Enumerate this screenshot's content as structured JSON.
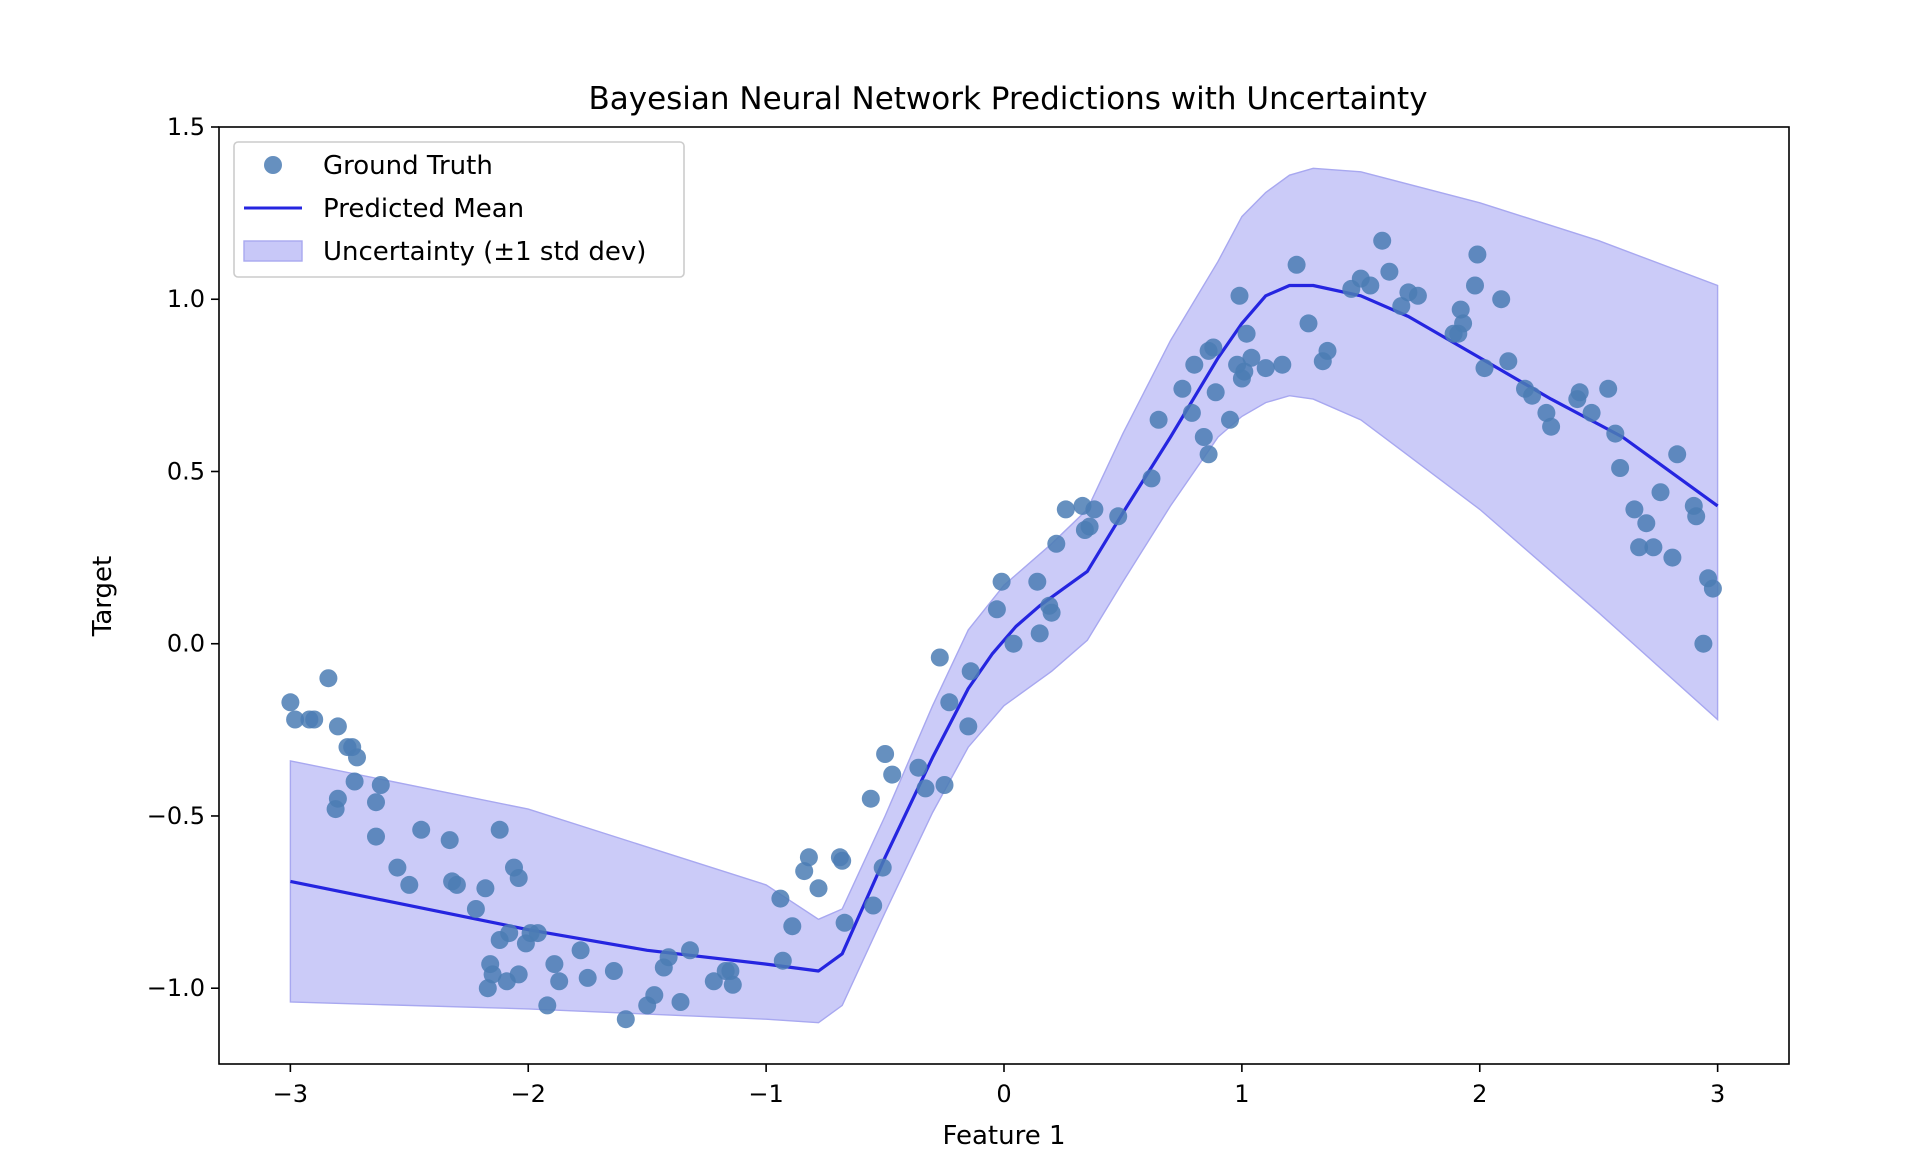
{
  "chart_data": {
    "type": "scatter",
    "title": "Bayesian Neural Network Predictions with Uncertainty",
    "xlabel": "Feature 1",
    "ylabel": "Target",
    "xlim": [
      -3.3,
      3.3
    ],
    "ylim": [
      -1.22,
      1.5
    ],
    "x_ticks": [
      -3,
      -2,
      -1,
      0,
      1,
      2,
      3
    ],
    "x_tick_labels": [
      "−3",
      "−2",
      "−1",
      "0",
      "1",
      "2",
      "3"
    ],
    "y_ticks": [
      -1.0,
      -0.5,
      0.0,
      0.5,
      1.0,
      1.5
    ],
    "y_tick_labels": [
      "−1.0",
      "−0.5",
      "0.0",
      "0.5",
      "1.0",
      "1.5"
    ],
    "grid": false,
    "legend_position": "top-left",
    "legend": [
      "Ground Truth",
      "Predicted Mean",
      "Uncertainty (±1 std dev)"
    ],
    "colors": {
      "ground_truth": "#4b7db4",
      "mean_line": "#2525e0",
      "band_fill": "#c8c8f8",
      "band_edge": "#a8a8f0"
    },
    "series": [
      {
        "name": "Ground Truth",
        "type": "scatter",
        "points": [
          [
            -3.0,
            -0.17
          ],
          [
            -2.98,
            -0.22
          ],
          [
            -2.92,
            -0.22
          ],
          [
            -2.9,
            -0.22
          ],
          [
            -2.84,
            -0.1
          ],
          [
            -2.8,
            -0.24
          ],
          [
            -2.76,
            -0.3
          ],
          [
            -2.74,
            -0.3
          ],
          [
            -2.72,
            -0.33
          ],
          [
            -2.73,
            -0.4
          ],
          [
            -2.8,
            -0.45
          ],
          [
            -2.81,
            -0.48
          ],
          [
            -2.62,
            -0.41
          ],
          [
            -2.64,
            -0.46
          ],
          [
            -2.64,
            -0.56
          ],
          [
            -2.55,
            -0.65
          ],
          [
            -2.5,
            -0.7
          ],
          [
            -2.45,
            -0.54
          ],
          [
            -2.33,
            -0.57
          ],
          [
            -2.32,
            -0.69
          ],
          [
            -2.3,
            -0.7
          ],
          [
            -2.22,
            -0.77
          ],
          [
            -2.18,
            -0.71
          ],
          [
            -2.12,
            -0.54
          ],
          [
            -2.16,
            -0.93
          ],
          [
            -2.17,
            -1.0
          ],
          [
            -2.15,
            -0.96
          ],
          [
            -2.12,
            -0.86
          ],
          [
            -2.09,
            -0.98
          ],
          [
            -2.08,
            -0.84
          ],
          [
            -2.06,
            -0.65
          ],
          [
            -2.04,
            -0.68
          ],
          [
            -2.04,
            -0.96
          ],
          [
            -2.01,
            -0.87
          ],
          [
            -1.99,
            -0.84
          ],
          [
            -1.96,
            -0.84
          ],
          [
            -1.92,
            -1.05
          ],
          [
            -1.89,
            -0.93
          ],
          [
            -1.87,
            -0.98
          ],
          [
            -1.78,
            -0.89
          ],
          [
            -1.75,
            -0.97
          ],
          [
            -1.64,
            -0.95
          ],
          [
            -1.59,
            -1.09
          ],
          [
            -1.5,
            -1.05
          ],
          [
            -1.47,
            -1.02
          ],
          [
            -1.43,
            -0.94
          ],
          [
            -1.41,
            -0.91
          ],
          [
            -1.36,
            -1.04
          ],
          [
            -1.32,
            -0.89
          ],
          [
            -1.22,
            -0.98
          ],
          [
            -1.17,
            -0.95
          ],
          [
            -1.15,
            -0.95
          ],
          [
            -1.14,
            -0.99
          ],
          [
            -0.93,
            -0.92
          ],
          [
            -0.94,
            -0.74
          ],
          [
            -0.89,
            -0.82
          ],
          [
            -0.84,
            -0.66
          ],
          [
            -0.82,
            -0.62
          ],
          [
            -0.78,
            -0.71
          ],
          [
            -0.69,
            -0.62
          ],
          [
            -0.68,
            -0.63
          ],
          [
            -0.67,
            -0.81
          ],
          [
            -0.56,
            -0.45
          ],
          [
            -0.55,
            -0.76
          ],
          [
            -0.51,
            -0.65
          ],
          [
            -0.5,
            -0.32
          ],
          [
            -0.47,
            -0.38
          ],
          [
            -0.36,
            -0.36
          ],
          [
            -0.33,
            -0.42
          ],
          [
            -0.27,
            -0.04
          ],
          [
            -0.25,
            -0.41
          ],
          [
            -0.23,
            -0.17
          ],
          [
            -0.15,
            -0.24
          ],
          [
            -0.14,
            -0.08
          ],
          [
            -0.03,
            0.1
          ],
          [
            -0.01,
            0.18
          ],
          [
            0.04,
            0.0
          ],
          [
            0.14,
            0.18
          ],
          [
            0.15,
            0.03
          ],
          [
            0.19,
            0.11
          ],
          [
            0.2,
            0.09
          ],
          [
            0.22,
            0.29
          ],
          [
            0.26,
            0.39
          ],
          [
            0.33,
            0.4
          ],
          [
            0.34,
            0.33
          ],
          [
            0.36,
            0.34
          ],
          [
            0.38,
            0.39
          ],
          [
            0.48,
            0.37
          ],
          [
            0.62,
            0.48
          ],
          [
            0.65,
            0.65
          ],
          [
            0.75,
            0.74
          ],
          [
            0.79,
            0.67
          ],
          [
            0.8,
            0.81
          ],
          [
            0.84,
            0.6
          ],
          [
            0.86,
            0.55
          ],
          [
            0.86,
            0.85
          ],
          [
            0.88,
            0.86
          ],
          [
            0.89,
            0.73
          ],
          [
            0.95,
            0.65
          ],
          [
            0.98,
            0.81
          ],
          [
            0.99,
            1.01
          ],
          [
            1.0,
            0.77
          ],
          [
            1.01,
            0.79
          ],
          [
            1.02,
            0.9
          ],
          [
            1.04,
            0.83
          ],
          [
            1.1,
            0.8
          ],
          [
            1.17,
            0.81
          ],
          [
            1.23,
            1.1
          ],
          [
            1.28,
            0.93
          ],
          [
            1.34,
            0.82
          ],
          [
            1.36,
            0.85
          ],
          [
            1.46,
            1.03
          ],
          [
            1.5,
            1.06
          ],
          [
            1.54,
            1.04
          ],
          [
            1.59,
            1.17
          ],
          [
            1.62,
            1.08
          ],
          [
            1.67,
            0.98
          ],
          [
            1.7,
            1.02
          ],
          [
            1.74,
            1.01
          ],
          [
            1.89,
            0.9
          ],
          [
            1.91,
            0.9
          ],
          [
            1.92,
            0.97
          ],
          [
            1.93,
            0.93
          ],
          [
            1.98,
            1.04
          ],
          [
            1.99,
            1.13
          ],
          [
            2.02,
            0.8
          ],
          [
            2.09,
            1.0
          ],
          [
            2.12,
            0.82
          ],
          [
            2.19,
            0.74
          ],
          [
            2.22,
            0.72
          ],
          [
            2.28,
            0.67
          ],
          [
            2.3,
            0.63
          ],
          [
            2.41,
            0.71
          ],
          [
            2.42,
            0.73
          ],
          [
            2.47,
            0.67
          ],
          [
            2.54,
            0.74
          ],
          [
            2.57,
            0.61
          ],
          [
            2.59,
            0.51
          ],
          [
            2.65,
            0.39
          ],
          [
            2.67,
            0.28
          ],
          [
            2.7,
            0.35
          ],
          [
            2.73,
            0.28
          ],
          [
            2.76,
            0.44
          ],
          [
            2.81,
            0.25
          ],
          [
            2.83,
            0.55
          ],
          [
            2.9,
            0.4
          ],
          [
            2.91,
            0.37
          ],
          [
            2.94,
            0.0
          ],
          [
            2.96,
            0.19
          ],
          [
            2.98,
            0.16
          ]
        ]
      },
      {
        "name": "Predicted Mean",
        "type": "line",
        "x": [
          -3.0,
          -2.0,
          -1.5,
          -1.0,
          -0.78,
          -0.68,
          -0.5,
          -0.3,
          -0.15,
          -0.05,
          0.05,
          0.15,
          0.25,
          0.35,
          0.5,
          0.7,
          0.9,
          1.0,
          1.1,
          1.2,
          1.3,
          1.5,
          1.7,
          2.0,
          2.3,
          2.6,
          3.0
        ],
        "y": [
          -0.69,
          -0.83,
          -0.89,
          -0.93,
          -0.95,
          -0.9,
          -0.62,
          -0.33,
          -0.13,
          -0.03,
          0.05,
          0.11,
          0.16,
          0.21,
          0.38,
          0.6,
          0.83,
          0.93,
          1.01,
          1.04,
          1.04,
          1.01,
          0.95,
          0.83,
          0.71,
          0.6,
          0.4
        ]
      },
      {
        "name": "Uncertainty (±1 std dev)",
        "type": "area",
        "x": [
          -3.0,
          -2.0,
          -1.0,
          -0.78,
          -0.68,
          -0.5,
          -0.3,
          -0.15,
          0.0,
          0.2,
          0.35,
          0.5,
          0.7,
          0.9,
          1.0,
          1.1,
          1.2,
          1.3,
          1.5,
          2.0,
          2.5,
          3.0
        ],
        "upper": [
          -0.34,
          -0.48,
          -0.7,
          -0.8,
          -0.77,
          -0.5,
          -0.18,
          0.04,
          0.17,
          0.29,
          0.39,
          0.61,
          0.88,
          1.11,
          1.24,
          1.31,
          1.36,
          1.38,
          1.37,
          1.28,
          1.17,
          1.04
        ],
        "lower": [
          -1.04,
          -1.06,
          -1.09,
          -1.1,
          -1.05,
          -0.78,
          -0.49,
          -0.3,
          -0.18,
          -0.08,
          0.01,
          0.18,
          0.4,
          0.6,
          0.66,
          0.7,
          0.72,
          0.71,
          0.65,
          0.39,
          0.09,
          -0.22
        ]
      }
    ]
  }
}
